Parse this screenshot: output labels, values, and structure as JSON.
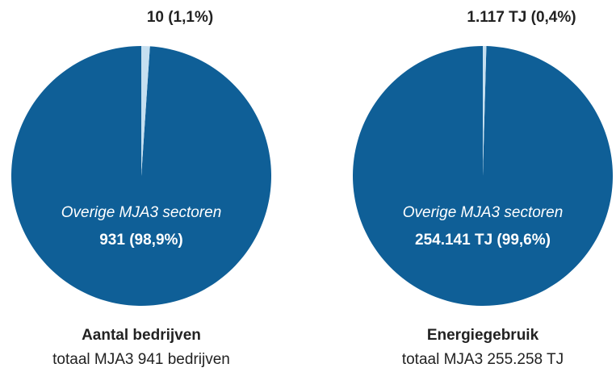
{
  "chart_data": [
    {
      "type": "pie",
      "title": "Aantal bedrijven",
      "subtitle": "totaal MJA3 941 bedrijven",
      "categories": [
        "Overige MJA3 sectoren",
        null
      ],
      "values": [
        931,
        10
      ],
      "value_labels": [
        "931 (98,9%)",
        "10 (1,1%)"
      ],
      "colors": [
        "#0f5f97",
        "#c5dff0"
      ]
    },
    {
      "type": "pie",
      "title": "Energiegebruik",
      "subtitle": "totaal MJA3 255.258 TJ",
      "categories": [
        "Overige MJA3 sectoren",
        null
      ],
      "values": [
        254141,
        1117
      ],
      "value_labels": [
        "254.141 TJ (99,6%)",
        "1.117 TJ (0,4%)"
      ],
      "colors": [
        "#0f5f97",
        "#c5dff0"
      ]
    }
  ]
}
